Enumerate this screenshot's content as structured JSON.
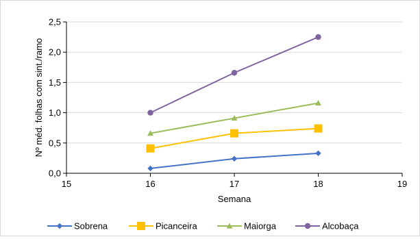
{
  "chart_data": {
    "type": "line",
    "title": "",
    "xlabel": "Semana",
    "ylabel": "Nº méd. folhas com sint./ramo",
    "x": [
      16,
      17,
      18
    ],
    "xlim": [
      15,
      19
    ],
    "xticks": [
      "15",
      "16",
      "17",
      "18",
      "19"
    ],
    "ylim": [
      0,
      2.5
    ],
    "yticks": [
      "0,0",
      "0,5",
      "1,0",
      "1,5",
      "2,0",
      "2,5"
    ],
    "grid": "horizontal",
    "legend_position": "bottom",
    "series": [
      {
        "name": "Sobrena",
        "color": "#4472c4",
        "marker": "diamond",
        "values": [
          0.08,
          0.24,
          0.33
        ]
      },
      {
        "name": "Picanceira",
        "color": "#ffc000",
        "marker": "square",
        "values": [
          0.41,
          0.66,
          0.74
        ]
      },
      {
        "name": "Maiorga",
        "color": "#9bbb59",
        "marker": "triangle",
        "values": [
          0.66,
          0.91,
          1.16
        ]
      },
      {
        "name": "Alcobaça",
        "color": "#8064a2",
        "marker": "circle",
        "values": [
          1.0,
          1.66,
          2.25
        ]
      }
    ]
  }
}
